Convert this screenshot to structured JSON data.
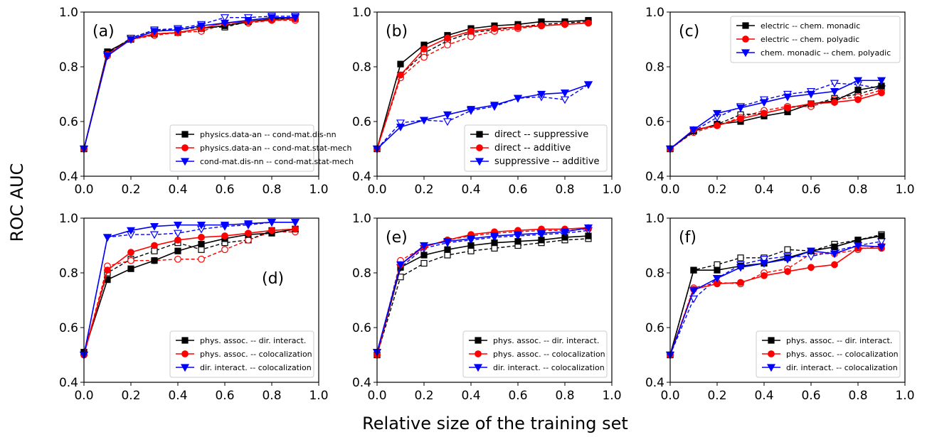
{
  "figure": {
    "ylabel": "ROC AUC",
    "xlabel": "Relative size of the training set"
  },
  "chart_data": [
    {
      "type": "line",
      "panel_label": "(a)",
      "x": [
        0.0,
        0.1,
        0.2,
        0.3,
        0.4,
        0.5,
        0.6,
        0.7,
        0.8,
        0.9
      ],
      "xlim": [
        0.0,
        1.0
      ],
      "ylim": [
        0.4,
        1.0
      ],
      "xticks": [
        "0.0",
        "0.2",
        "0.4",
        "0.6",
        "0.8",
        "1.0"
      ],
      "yticks": [
        "0.4",
        "0.6",
        "0.8",
        "1.0"
      ],
      "legend_position": "lower-right",
      "series": [
        {
          "name": "physics.data-an -- cond-mat.dis-nn",
          "color": "#000000",
          "marker": "square",
          "values": [
            0.5,
            0.855,
            0.9,
            0.92,
            0.925,
            0.94,
            0.95,
            0.965,
            0.975,
            0.98
          ],
          "dashed_values": [
            0.5,
            0.85,
            0.905,
            0.935,
            0.935,
            0.945,
            0.945,
            0.965,
            0.975,
            0.975
          ]
        },
        {
          "name": "physics.data-an -- cond-mat.stat-mech",
          "color": "#ff0000",
          "marker": "circle",
          "values": [
            0.5,
            0.845,
            0.9,
            0.92,
            0.925,
            0.94,
            0.96,
            0.965,
            0.97,
            0.975
          ],
          "dashed_values": [
            0.5,
            0.84,
            0.9,
            0.915,
            0.925,
            0.93,
            0.955,
            0.96,
            0.97,
            0.97
          ]
        },
        {
          "name": "cond-mat.dis-nn -- cond-mat.stat-mech",
          "color": "#0000ff",
          "marker": "triangle-down",
          "values": [
            0.5,
            0.84,
            0.9,
            0.93,
            0.935,
            0.95,
            0.96,
            0.97,
            0.98,
            0.98
          ],
          "dashed_values": [
            0.5,
            0.845,
            0.905,
            0.935,
            0.94,
            0.955,
            0.98,
            0.98,
            0.985,
            0.985
          ]
        }
      ]
    },
    {
      "type": "line",
      "panel_label": "(b)",
      "x": [
        0.0,
        0.1,
        0.2,
        0.3,
        0.4,
        0.5,
        0.6,
        0.7,
        0.8,
        0.9
      ],
      "xlim": [
        0.0,
        1.0
      ],
      "ylim": [
        0.4,
        1.0
      ],
      "xticks": [
        "0.0",
        "0.2",
        "0.4",
        "0.6",
        "0.8",
        "1.0"
      ],
      "yticks": [
        "0.4",
        "0.6",
        "0.8",
        "1.0"
      ],
      "legend_position": "lower-right",
      "series": [
        {
          "name": "direct -- suppressive",
          "color": "#000000",
          "marker": "square",
          "values": [
            0.5,
            0.81,
            0.88,
            0.915,
            0.94,
            0.95,
            0.955,
            0.965,
            0.965,
            0.97
          ],
          "dashed_values": [
            0.5,
            0.77,
            0.85,
            0.895,
            0.925,
            0.935,
            0.945,
            0.955,
            0.96,
            0.965
          ]
        },
        {
          "name": "direct -- additive",
          "color": "#ff0000",
          "marker": "circle",
          "values": [
            0.5,
            0.77,
            0.865,
            0.905,
            0.93,
            0.94,
            0.945,
            0.95,
            0.955,
            0.96
          ],
          "dashed_values": [
            0.5,
            0.76,
            0.835,
            0.88,
            0.91,
            0.93,
            0.94,
            0.95,
            0.955,
            0.96
          ]
        },
        {
          "name": "suppressive -- additive",
          "color": "#0000ff",
          "marker": "triangle-down",
          "values": [
            0.5,
            0.58,
            0.605,
            0.625,
            0.645,
            0.66,
            0.685,
            0.7,
            0.705,
            0.735
          ],
          "dashed_values": [
            0.5,
            0.595,
            0.605,
            0.6,
            0.64,
            0.655,
            0.685,
            0.69,
            0.68,
            0.735
          ]
        }
      ]
    },
    {
      "type": "line",
      "panel_label": "(c)",
      "x": [
        0.0,
        0.1,
        0.2,
        0.3,
        0.4,
        0.5,
        0.6,
        0.7,
        0.8,
        0.9
      ],
      "xlim": [
        0.0,
        1.0
      ],
      "ylim": [
        0.4,
        1.0
      ],
      "xticks": [
        "0.0",
        "0.2",
        "0.4",
        "0.6",
        "0.8",
        "1.0"
      ],
      "yticks": [
        "0.4",
        "0.6",
        "0.8",
        "1.0"
      ],
      "legend_position": "top-right",
      "series": [
        {
          "name": "electric -- chem. monadic",
          "color": "#000000",
          "marker": "square",
          "values": [
            0.5,
            0.565,
            0.59,
            0.6,
            0.62,
            0.635,
            0.665,
            0.675,
            0.715,
            0.73
          ],
          "dashed_values": [
            0.5,
            0.565,
            0.59,
            0.625,
            0.63,
            0.65,
            0.66,
            0.685,
            0.7,
            0.725
          ]
        },
        {
          "name": "electric -- chem. polyadic",
          "color": "#ff0000",
          "marker": "circle",
          "values": [
            0.5,
            0.57,
            0.585,
            0.61,
            0.63,
            0.65,
            0.665,
            0.67,
            0.68,
            0.705
          ],
          "dashed_values": [
            0.5,
            0.56,
            0.585,
            0.615,
            0.64,
            0.655,
            0.655,
            0.68,
            0.69,
            0.715
          ]
        },
        {
          "name": "chem. monadic -- chem. polyadic",
          "color": "#0000ff",
          "marker": "triangle-down",
          "values": [
            0.5,
            0.57,
            0.63,
            0.65,
            0.67,
            0.69,
            0.7,
            0.71,
            0.75,
            0.75
          ],
          "dashed_values": [
            0.5,
            0.565,
            0.615,
            0.655,
            0.68,
            0.7,
            0.71,
            0.74,
            0.735,
            0.72
          ]
        }
      ]
    },
    {
      "type": "line",
      "panel_label": "(d)",
      "x": [
        0.0,
        0.1,
        0.2,
        0.3,
        0.4,
        0.5,
        0.6,
        0.7,
        0.8,
        0.9
      ],
      "xlim": [
        0.0,
        1.0
      ],
      "ylim": [
        0.4,
        1.0
      ],
      "xticks": [
        "0.0",
        "0.2",
        "0.4",
        "0.6",
        "0.8",
        "1.0"
      ],
      "yticks": [
        "0.4",
        "0.6",
        "0.8",
        "1.0"
      ],
      "legend_position": "lower-right",
      "series": [
        {
          "name": "phys. assoc. -- dir. interact.",
          "color": "#000000",
          "marker": "square",
          "values": [
            0.51,
            0.775,
            0.815,
            0.845,
            0.88,
            0.905,
            0.925,
            0.94,
            0.945,
            0.96
          ],
          "dashed_values": [
            0.51,
            0.8,
            0.85,
            0.88,
            0.91,
            0.885,
            0.91,
            0.92,
            0.955,
            0.96
          ]
        },
        {
          "name": "phys. assoc. -- colocalization",
          "color": "#ff0000",
          "marker": "circle",
          "values": [
            0.5,
            0.81,
            0.875,
            0.9,
            0.92,
            0.93,
            0.935,
            0.945,
            0.955,
            0.96
          ],
          "dashed_values": [
            0.5,
            0.825,
            0.845,
            0.845,
            0.85,
            0.85,
            0.885,
            0.92,
            0.95,
            0.95
          ]
        },
        {
          "name": "dir. interact. -- colocalization",
          "color": "#0000ff",
          "marker": "triangle-down",
          "values": [
            0.5,
            0.93,
            0.955,
            0.97,
            0.975,
            0.975,
            0.975,
            0.98,
            0.985,
            0.985
          ],
          "dashed_values": [
            0.5,
            0.93,
            0.94,
            0.94,
            0.945,
            0.96,
            0.97,
            0.975,
            0.985,
            0.985
          ]
        }
      ]
    },
    {
      "type": "line",
      "panel_label": "(e)",
      "x": [
        0.0,
        0.1,
        0.2,
        0.3,
        0.4,
        0.5,
        0.6,
        0.7,
        0.8,
        0.9
      ],
      "xlim": [
        0.0,
        1.0
      ],
      "ylim": [
        0.4,
        1.0
      ],
      "xticks": [
        "0.0",
        "0.2",
        "0.4",
        "0.6",
        "0.8",
        "1.0"
      ],
      "yticks": [
        "0.4",
        "0.6",
        "0.8",
        "1.0"
      ],
      "legend_position": "lower-right",
      "series": [
        {
          "name": "phys. assoc. -- dir. interact.",
          "color": "#000000",
          "marker": "square",
          "values": [
            0.5,
            0.82,
            0.865,
            0.885,
            0.9,
            0.91,
            0.915,
            0.92,
            0.93,
            0.935
          ],
          "dashed_values": [
            0.5,
            0.785,
            0.835,
            0.865,
            0.88,
            0.89,
            0.9,
            0.91,
            0.92,
            0.925
          ]
        },
        {
          "name": "phys. assoc. -- colocalization",
          "color": "#ff0000",
          "marker": "circle",
          "values": [
            0.5,
            0.83,
            0.895,
            0.92,
            0.94,
            0.95,
            0.955,
            0.96,
            0.96,
            0.965
          ],
          "dashed_values": [
            0.5,
            0.845,
            0.895,
            0.92,
            0.935,
            0.945,
            0.95,
            0.955,
            0.955,
            0.96
          ]
        },
        {
          "name": "dir. interact. -- colocalization",
          "color": "#0000ff",
          "marker": "triangle-down",
          "values": [
            0.51,
            0.83,
            0.9,
            0.915,
            0.925,
            0.935,
            0.94,
            0.945,
            0.95,
            0.965
          ],
          "dashed_values": [
            0.51,
            0.82,
            0.89,
            0.91,
            0.92,
            0.93,
            0.935,
            0.94,
            0.945,
            0.955
          ]
        }
      ]
    },
    {
      "type": "line",
      "panel_label": "(f)",
      "x": [
        0.0,
        0.1,
        0.2,
        0.3,
        0.4,
        0.5,
        0.6,
        0.7,
        0.8,
        0.9
      ],
      "xlim": [
        0.0,
        1.0
      ],
      "ylim": [
        0.4,
        1.0
      ],
      "xticks": [
        "0.0",
        "0.2",
        "0.4",
        "0.6",
        "0.8",
        "1.0"
      ],
      "yticks": [
        "0.4",
        "0.6",
        "0.8",
        "1.0"
      ],
      "legend_position": "lower-right",
      "series": [
        {
          "name": "phys. assoc. -- dir. interact.",
          "color": "#000000",
          "marker": "square",
          "values": [
            0.5,
            0.81,
            0.81,
            0.825,
            0.835,
            0.855,
            0.88,
            0.895,
            0.92,
            0.935
          ],
          "dashed_values": [
            0.5,
            0.81,
            0.83,
            0.855,
            0.855,
            0.885,
            0.88,
            0.905,
            0.92,
            0.94
          ]
        },
        {
          "name": "phys. assoc. -- colocalization",
          "color": "#ff0000",
          "marker": "circle",
          "values": [
            0.5,
            0.74,
            0.76,
            0.765,
            0.79,
            0.805,
            0.82,
            0.83,
            0.89,
            0.89
          ],
          "dashed_values": [
            0.5,
            0.745,
            0.765,
            0.76,
            0.8,
            0.815,
            0.87,
            0.87,
            0.885,
            0.9
          ]
        },
        {
          "name": "dir. interact. -- colocalization",
          "color": "#0000ff",
          "marker": "triangle-down",
          "values": [
            0.5,
            0.735,
            0.78,
            0.82,
            0.835,
            0.85,
            0.88,
            0.87,
            0.9,
            0.895
          ],
          "dashed_values": [
            0.5,
            0.705,
            0.78,
            0.83,
            0.85,
            0.86,
            0.86,
            0.88,
            0.9,
            0.915
          ]
        }
      ]
    }
  ]
}
